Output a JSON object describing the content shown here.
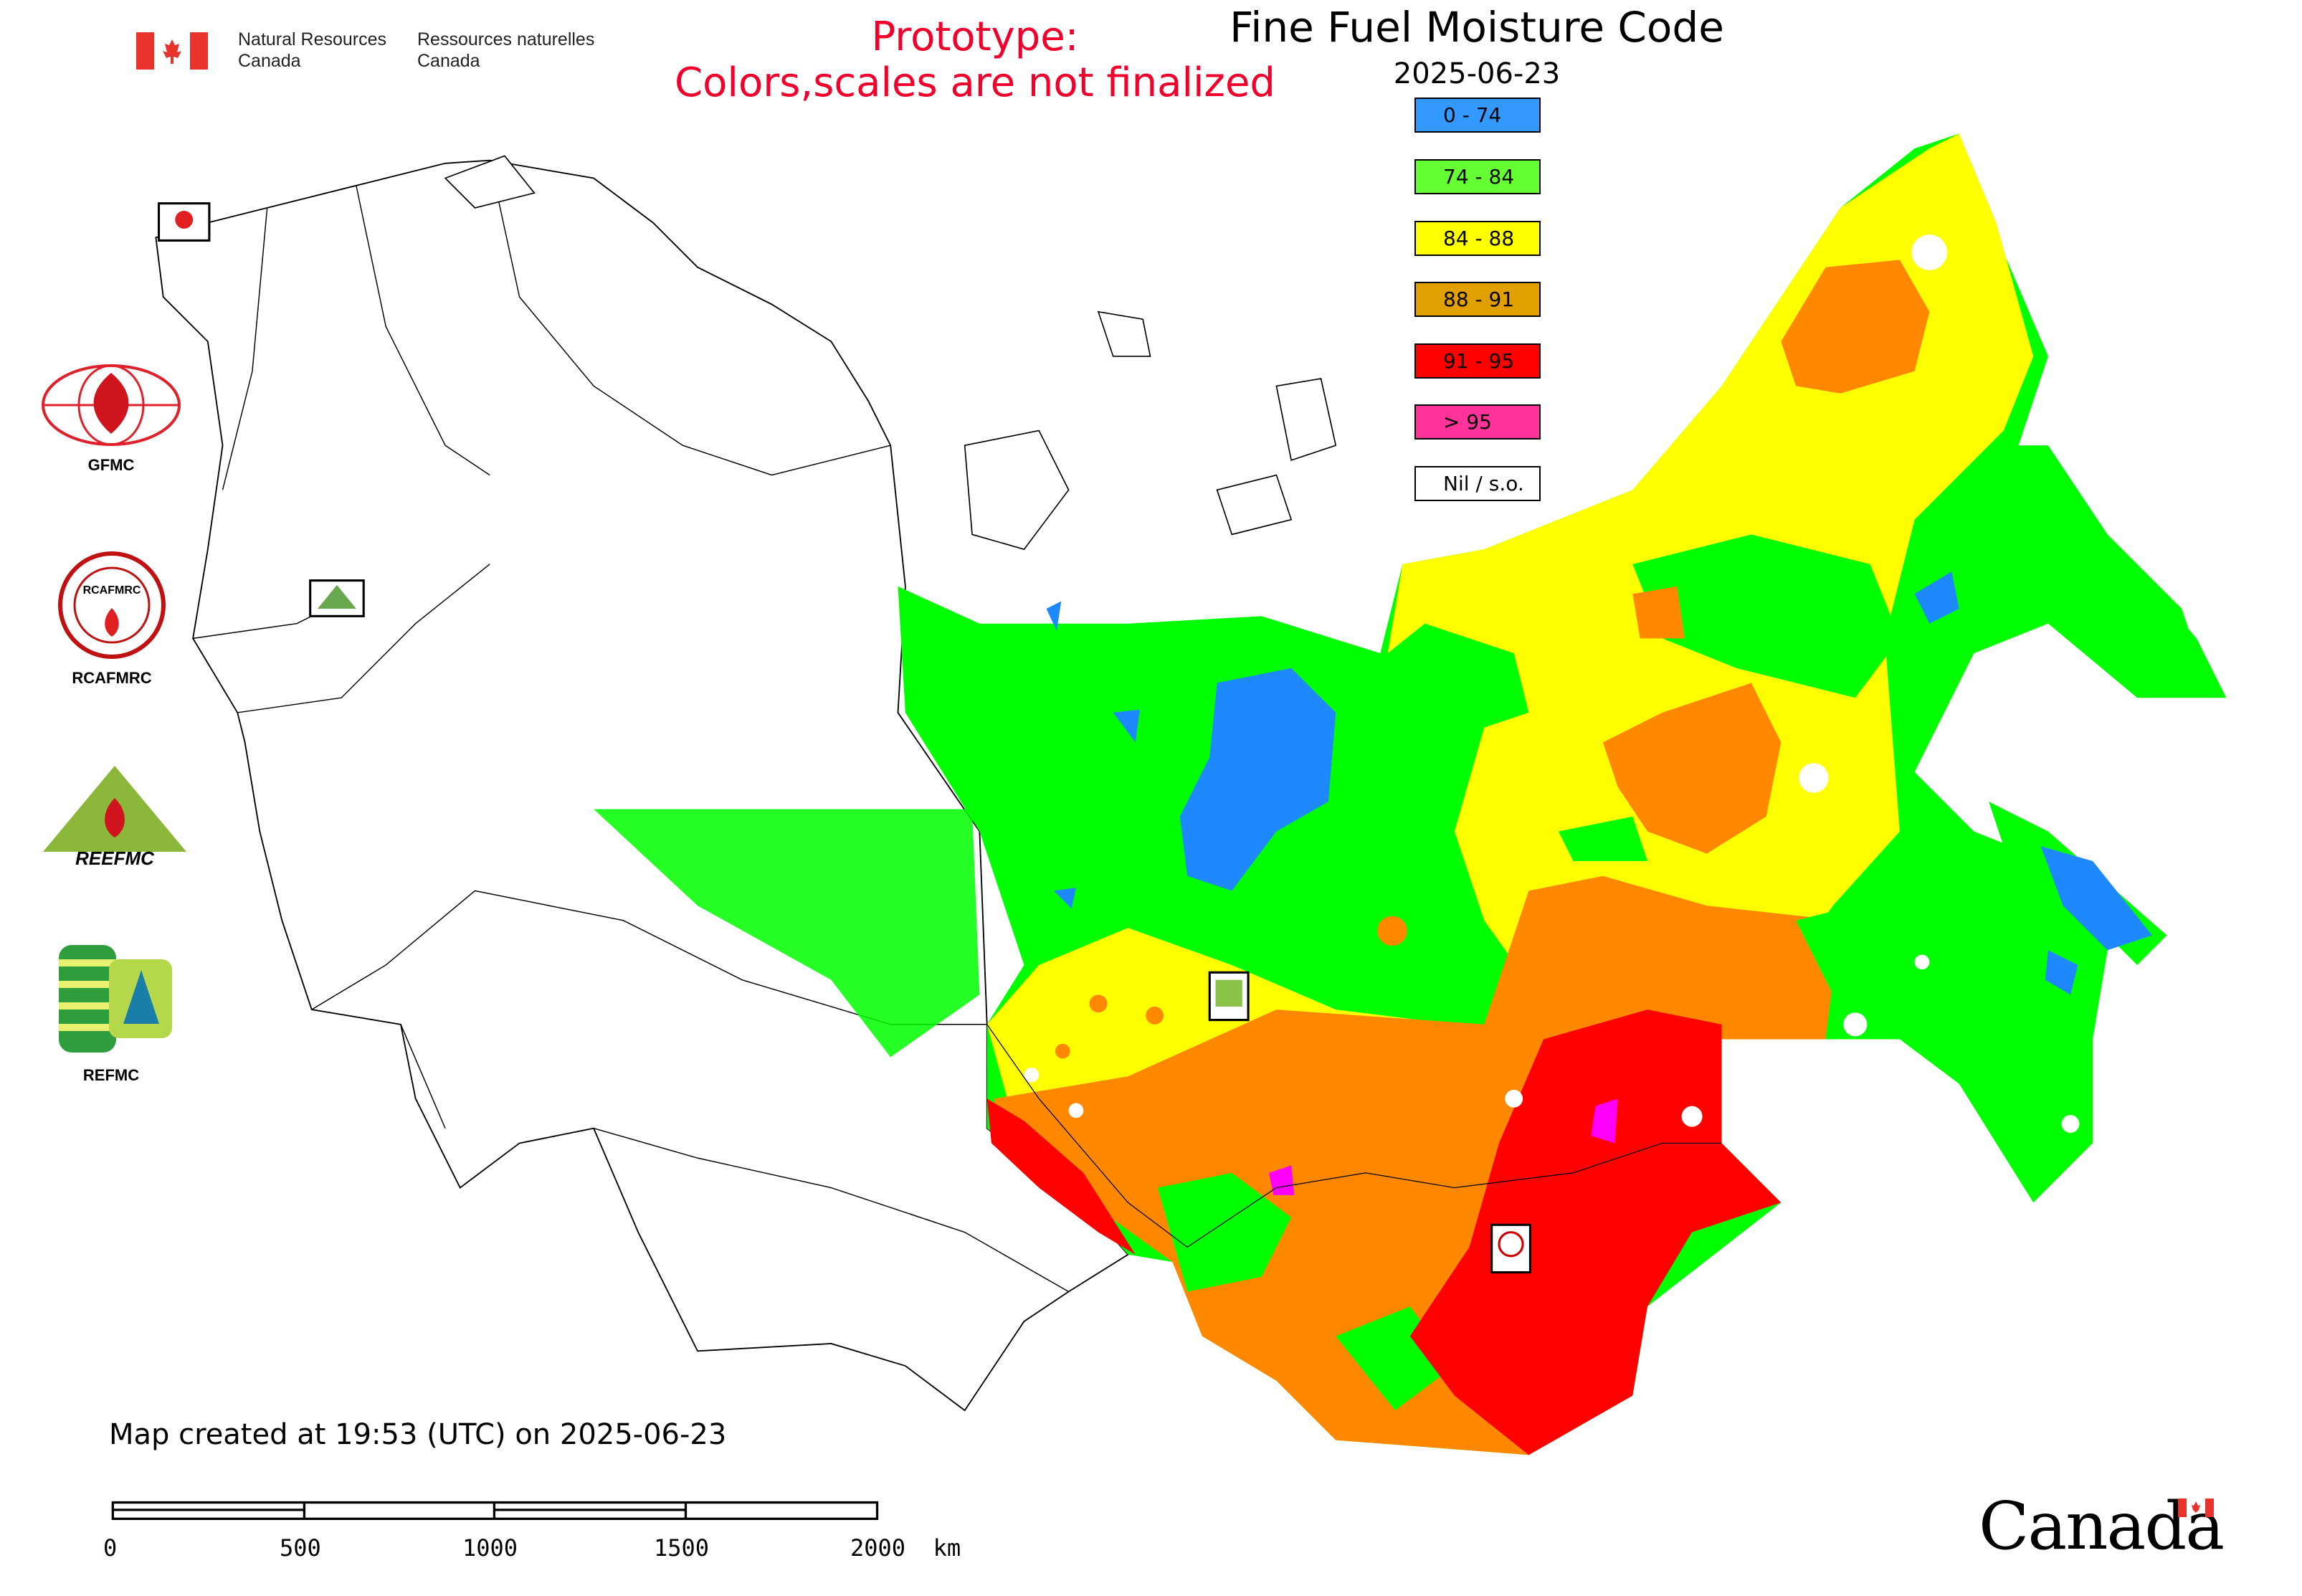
{
  "header": {
    "agency_en_line1": "Natural Resources",
    "agency_en_line2": "Canada",
    "agency_fr_line1": "Ressources naturelles",
    "agency_fr_line2": "Canada",
    "prototype_line1": "Prototype:",
    "prototype_line2": "Colors,scales are not finalized",
    "title": "Fine Fuel Moisture Code",
    "date": "2025-06-23"
  },
  "legend": [
    {
      "label": "0 - 74",
      "color": "#3399ff"
    },
    {
      "label": "74 - 84",
      "color": "#66ff33"
    },
    {
      "label": "84 - 88",
      "color": "#ffff00"
    },
    {
      "label": "88 - 91",
      "color": "#e0a000"
    },
    {
      "label": "91 - 95",
      "color": "#ff0000"
    },
    {
      "label": "> 95",
      "color": "#ff3399"
    },
    {
      "label": "Nil / s.o.",
      "color": "#ffffff"
    }
  ],
  "map_colors": {
    "blue": "#1e88ff",
    "green": "#00ff00",
    "yellow": "#ffff00",
    "orange": "#ff8800",
    "red": "#ff0000",
    "magenta": "#ff00ff"
  },
  "logos": [
    {
      "label": "GFMC",
      "icon": "gfmc-logo"
    },
    {
      "label": "RCAFMRC",
      "icon": "rcafmrc-logo"
    },
    {
      "label": "REEFMC",
      "icon": "reefmc-logo"
    },
    {
      "label": "REFMC",
      "icon": "refmc-logo"
    }
  ],
  "footer": {
    "created": "Map created at 19:53 (UTC) on 2025-06-23",
    "scale_labels": [
      "0",
      "500",
      "1000",
      "1500",
      "2000  km"
    ],
    "wordmark": "Canada"
  }
}
